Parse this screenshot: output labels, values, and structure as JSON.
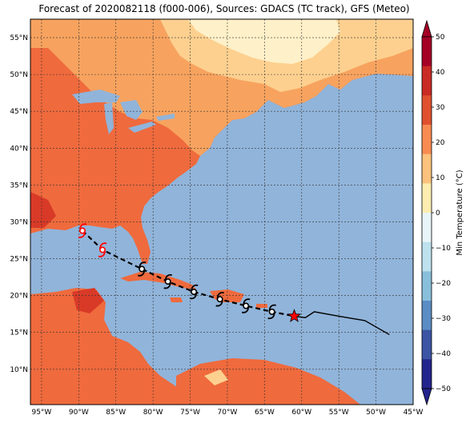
{
  "title": "Forecast of 2020082118 (f000-006), Sources: GDACS (TC track), GFS (Meteo)",
  "colors": {
    "ocean": "#91b4da",
    "land_hot": "#ef6a3d",
    "land_warm": "#f7a35f",
    "land_mild": "#fdd08f",
    "land_cool": "#fef0c8",
    "land_veryhot": "#d83a27",
    "water_inland": "#91b4da",
    "track_past": "#ff0000",
    "track_forecast": "#000000",
    "current_star": "#ff0000"
  },
  "map": {
    "lon_labels": [
      "95°W",
      "90°W",
      "85°W",
      "80°W",
      "75°W",
      "70°W",
      "65°W",
      "60°W",
      "55°W",
      "50°W",
      "45°W"
    ],
    "lat_labels": [
      "10°N",
      "15°N",
      "20°N",
      "25°N",
      "30°N",
      "35°N",
      "40°N",
      "45°N",
      "50°N",
      "55°N"
    ]
  },
  "colorbar": {
    "label": "Min Temperature (°C)",
    "ticks": [
      "50",
      "40",
      "30",
      "20",
      "10",
      "0",
      "−10",
      "−20",
      "−30",
      "−40",
      "−50"
    ],
    "colors": [
      "#a50026",
      "#c92a23",
      "#e0502f",
      "#f88b52",
      "#fdc27d",
      "#fdedb0",
      "#e8f5f8",
      "#bde2ee",
      "#88bfdb",
      "#5a8dc4",
      "#3b55a4",
      "#23238d"
    ]
  },
  "track": {
    "past_positions": [
      {
        "lon": -89.5,
        "lat": 28.8
      },
      {
        "lon": -86.8,
        "lat": 26.2
      }
    ],
    "forecast_positions": [
      {
        "lon": -81.5,
        "lat": 23.6
      },
      {
        "lon": -78.0,
        "lat": 21.9
      },
      {
        "lon": -74.5,
        "lat": 20.5
      },
      {
        "lon": -71.0,
        "lat": 19.5
      },
      {
        "lon": -67.5,
        "lat": 18.6
      },
      {
        "lon": -64.0,
        "lat": 17.8
      }
    ],
    "current_position": {
      "lon": -61.0,
      "lat": 17.2
    },
    "forecast_line": [
      {
        "lon": -61.0,
        "lat": 17.2
      },
      {
        "lon": -59.5,
        "lat": 17.0
      },
      {
        "lon": -58.3,
        "lat": 17.8
      },
      {
        "lon": -55.0,
        "lat": 17.2
      },
      {
        "lon": -51.5,
        "lat": 16.6
      },
      {
        "lon": -48.2,
        "lat": 14.7
      }
    ]
  }
}
